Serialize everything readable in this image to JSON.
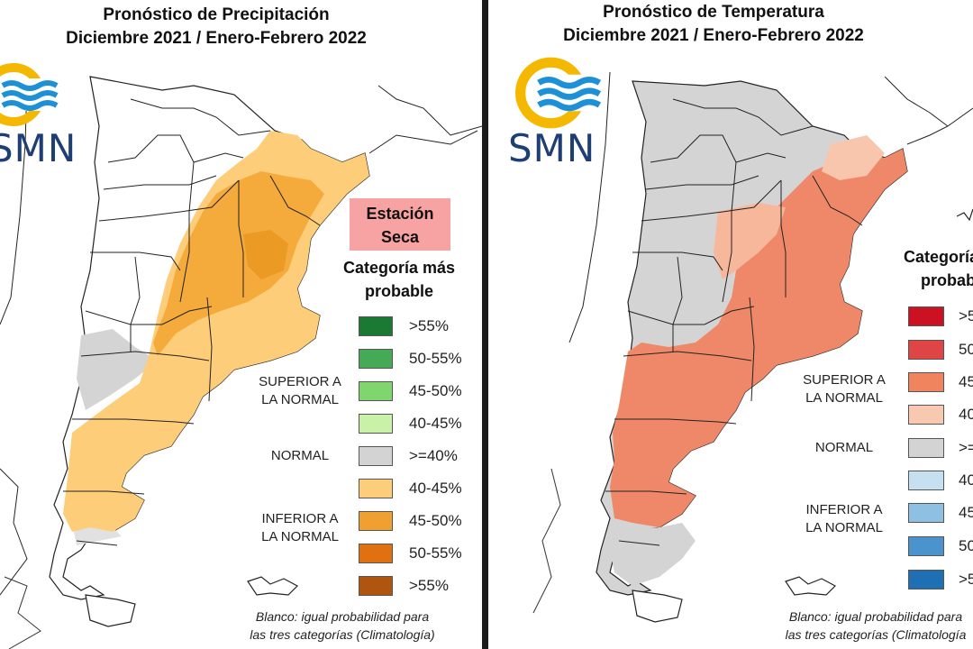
{
  "left": {
    "title_line1": "Pronóstico de Precipitación",
    "title_line2": "Diciembre 2021 / Enero-Febrero 2022",
    "logo_text": "SMN",
    "estacion_line1": "Estación",
    "estacion_line2": "Seca",
    "category_title_line1": "Categoría más",
    "category_title_line2": "probable",
    "group_superior_line1": "SUPERIOR A",
    "group_superior_line2": "LA NORMAL",
    "group_normal": "NORMAL",
    "group_inferior_line1": "INFERIOR A",
    "group_inferior_line2": "LA NORMAL",
    "legend": [
      {
        "label": ">55%",
        "color": "#1a7a33"
      },
      {
        "label": "50-55%",
        "color": "#44aa55"
      },
      {
        "label": "45-50%",
        "color": "#7fd66e"
      },
      {
        "label": "40-45%",
        "color": "#c9f2a8"
      },
      {
        "label": ">=40%",
        "color": "#d3d3d3"
      },
      {
        "label": "40-45%",
        "color": "#fdcd7a"
      },
      {
        "label": "45-50%",
        "color": "#f0a030"
      },
      {
        "label": "50-55%",
        "color": "#e07010"
      },
      {
        "label": ">55%",
        "color": "#b05510"
      }
    ],
    "footnote_line1": "Blanco: igual probabilidad para",
    "footnote_line2": "las tres categorías (Climatología)"
  },
  "right": {
    "title_line1": "Pronóstico de Temperatura",
    "title_line2": "Diciembre 2021 / Enero-Febrero 2022",
    "logo_text": "SMN",
    "category_title_line1": "Categoría m",
    "category_title_line2": "probabl",
    "group_superior_line1": "SUPERIOR A",
    "group_superior_line2": "LA NORMAL",
    "group_normal": "NORMAL",
    "group_inferior_line1": "INFERIOR A",
    "group_inferior_line2": "LA NORMAL",
    "legend": [
      {
        "label": ">5",
        "color": "#cc1122"
      },
      {
        "label": "50",
        "color": "#e04545"
      },
      {
        "label": "45",
        "color": "#f0845e"
      },
      {
        "label": "40",
        "color": "#f8c8b0"
      },
      {
        "label": ">=",
        "color": "#d3d3d3"
      },
      {
        "label": "40",
        "color": "#c6e0f2"
      },
      {
        "label": "45",
        "color": "#8ec0e3"
      },
      {
        "label": "50",
        "color": "#4b93cc"
      },
      {
        "label": ">5",
        "color": "#1f6fb5"
      }
    ],
    "footnote_line1": "Blanco: igual probabilidad para",
    "footnote_line2": "las tres categorías (Climatología"
  },
  "colors": {
    "logo_sun": "#f5b800",
    "logo_waves": "#1e90d6",
    "logo_text": "#1e3f73"
  }
}
